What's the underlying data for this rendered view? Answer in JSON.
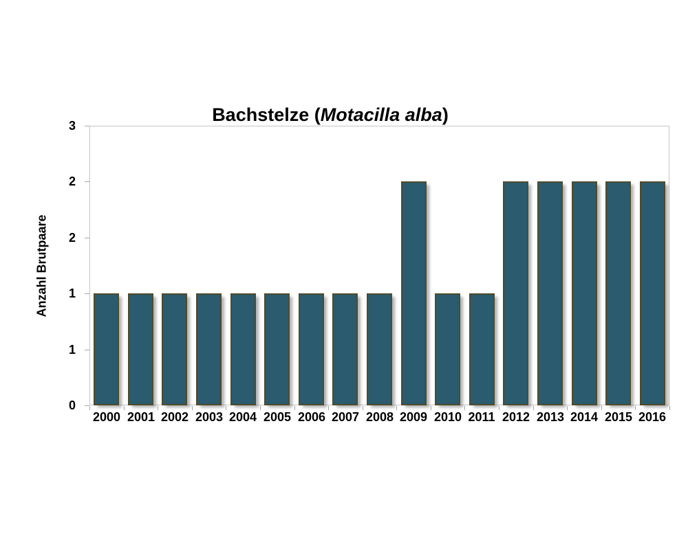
{
  "chart_data": {
    "type": "bar",
    "title": {
      "prefix": "Bachstelze (",
      "species": "Motacilla alba",
      "suffix": ")"
    },
    "categories": [
      "2000",
      "2001",
      "2002",
      "2003",
      "2004",
      "2005",
      "2006",
      "2007",
      "2008",
      "2009",
      "2010",
      "2011",
      "2012",
      "2013",
      "2014",
      "2015",
      "2016"
    ],
    "values": [
      1,
      1,
      1,
      1,
      1,
      1,
      1,
      1,
      1,
      2,
      1,
      1,
      2,
      2,
      2,
      2,
      2
    ],
    "xlabel": "",
    "ylabel": "Anzahl Brutpaare",
    "ylim": [
      0,
      2.5
    ],
    "yticks": [
      {
        "value": 0,
        "label": "0"
      },
      {
        "value": 0.5,
        "label": "1"
      },
      {
        "value": 1,
        "label": "1"
      },
      {
        "value": 1.5,
        "label": "2"
      },
      {
        "value": 2,
        "label": "2"
      },
      {
        "value": 2.5,
        "label": "3"
      }
    ],
    "grid": false,
    "legend": false,
    "colors": {
      "bar_fill": "#2a5b6e",
      "bar_border": "#4f4b2b",
      "bar_shadow": "rgba(125,125,125,0.6)",
      "plot_border": "#c6c6c6",
      "tick_mark": "#a6a6a6",
      "text": "#000000",
      "background": "#ffffff"
    }
  }
}
